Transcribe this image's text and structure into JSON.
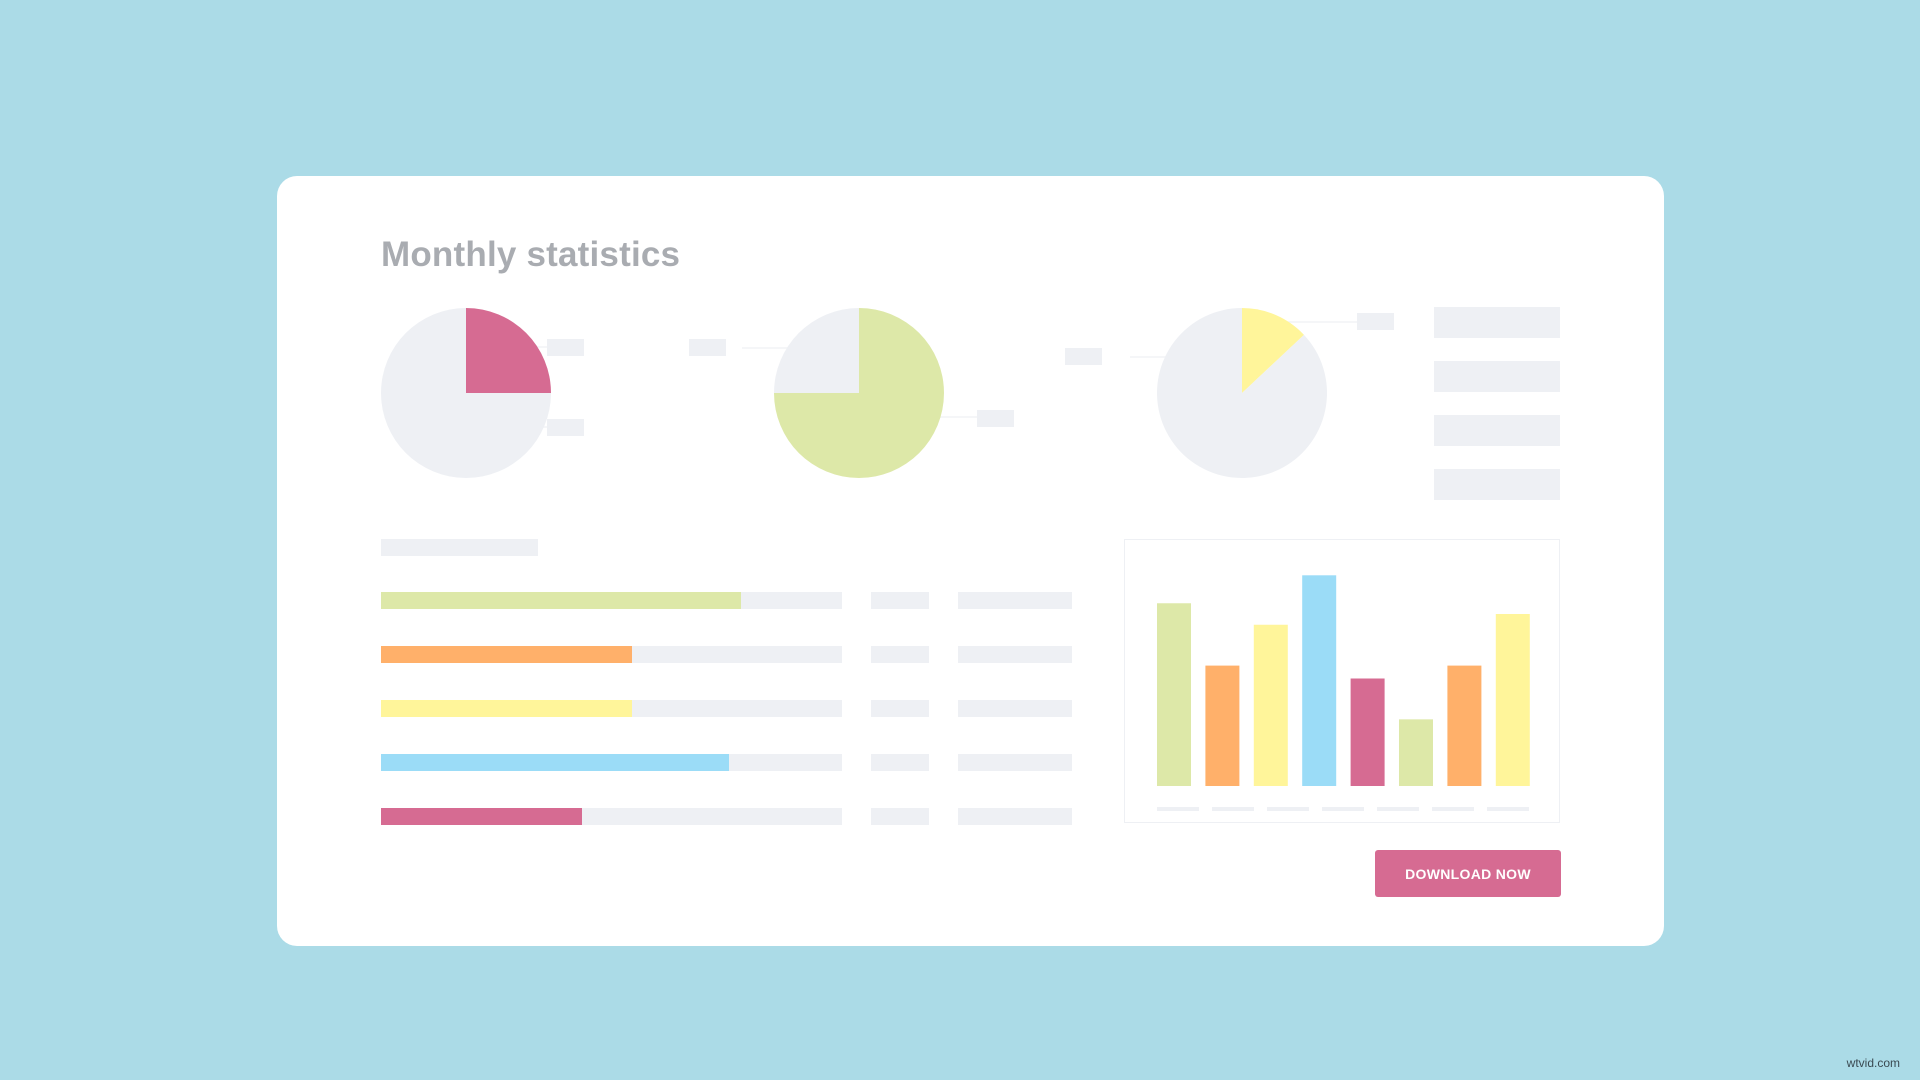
{
  "title": "Monthly statistics",
  "download_button": {
    "label": "DOWNLOAD NOW"
  },
  "watermark": "wtvid.com",
  "colors": {
    "background": "#abdbe7",
    "card": "#ffffff",
    "placeholder": "#eef0f4",
    "pink": "#d66b92",
    "green": "#dde8a8",
    "orange": "#ffb06a",
    "yellow": "#fff59a",
    "blue": "#9bdcf7",
    "title": "#a9acb1"
  },
  "chart_data": [
    {
      "type": "pie",
      "name": "pie-1",
      "slices": [
        {
          "value": 25,
          "color": "#d66b92"
        },
        {
          "value": 75,
          "color": "#eef0f4"
        }
      ]
    },
    {
      "type": "pie",
      "name": "pie-2",
      "slices": [
        {
          "value": 75,
          "color": "#dde8a8"
        },
        {
          "value": 25,
          "color": "#eef0f4"
        }
      ]
    },
    {
      "type": "pie",
      "name": "pie-3",
      "slices": [
        {
          "value": 13,
          "color": "#fff59a"
        },
        {
          "value": 87,
          "color": "#eef0f4"
        }
      ]
    },
    {
      "type": "bar",
      "name": "progress-bars",
      "orientation": "horizontal",
      "values": [
        0.78,
        0.545,
        0.545,
        0.755,
        0.435
      ],
      "colors": [
        "#dde8a8",
        "#ffb06a",
        "#fff59a",
        "#9bdcf7",
        "#d66b92"
      ],
      "ylim": [
        0,
        1
      ]
    },
    {
      "type": "bar",
      "name": "column-chart",
      "values": [
        85,
        56,
        75,
        98,
        50,
        31,
        56,
        80
      ],
      "colors": [
        "#dde8a8",
        "#ffb06a",
        "#fff59a",
        "#9bdcf7",
        "#d66b92",
        "#dde8a8",
        "#ffb06a",
        "#fff59a"
      ],
      "ylim": [
        0,
        100
      ],
      "tick_count": 7
    }
  ]
}
